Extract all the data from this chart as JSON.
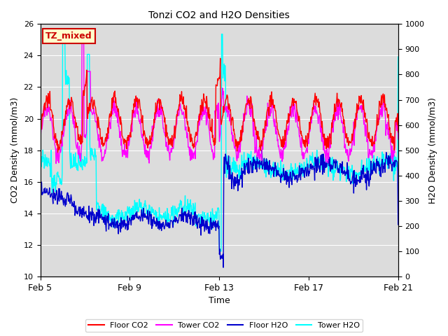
{
  "title": "Tonzi CO2 and H2O Densities",
  "xlabel": "Time",
  "ylabel_left": "CO2 Density (mmol/m3)",
  "ylabel_right": "H2O Density (mmol/m3)",
  "annotation": "TZ_mixed",
  "x_tick_labels": [
    "Feb 5",
    "Feb 9",
    "Feb 13",
    "Feb 17",
    "Feb 21"
  ],
  "x_tick_pos": [
    0,
    4,
    8,
    12,
    16
  ],
  "ylim_left": [
    10,
    26
  ],
  "ylim_right": [
    0,
    1000
  ],
  "yticks_left": [
    10,
    12,
    14,
    16,
    18,
    20,
    22,
    24,
    26
  ],
  "yticks_right": [
    0,
    100,
    200,
    300,
    400,
    500,
    600,
    700,
    800,
    900,
    1000
  ],
  "colors": {
    "floor_co2": "#FF0000",
    "tower_co2": "#FF00FF",
    "floor_h2o": "#0000CD",
    "tower_h2o": "#00FFFF"
  },
  "legend_labels": [
    "Floor CO2",
    "Tower CO2",
    "Floor H2O",
    "Tower H2O"
  ],
  "plot_bg": "#DCDCDC",
  "fig_bg": "#FFFFFF",
  "annotation_box_facecolor": "#FFFFCC",
  "annotation_box_edgecolor": "#CC0000",
  "annotation_text_color": "#CC0000",
  "grid_color": "#FFFFFF",
  "linewidth": 1.0,
  "figsize": [
    6.4,
    4.8
  ],
  "dpi": 100
}
